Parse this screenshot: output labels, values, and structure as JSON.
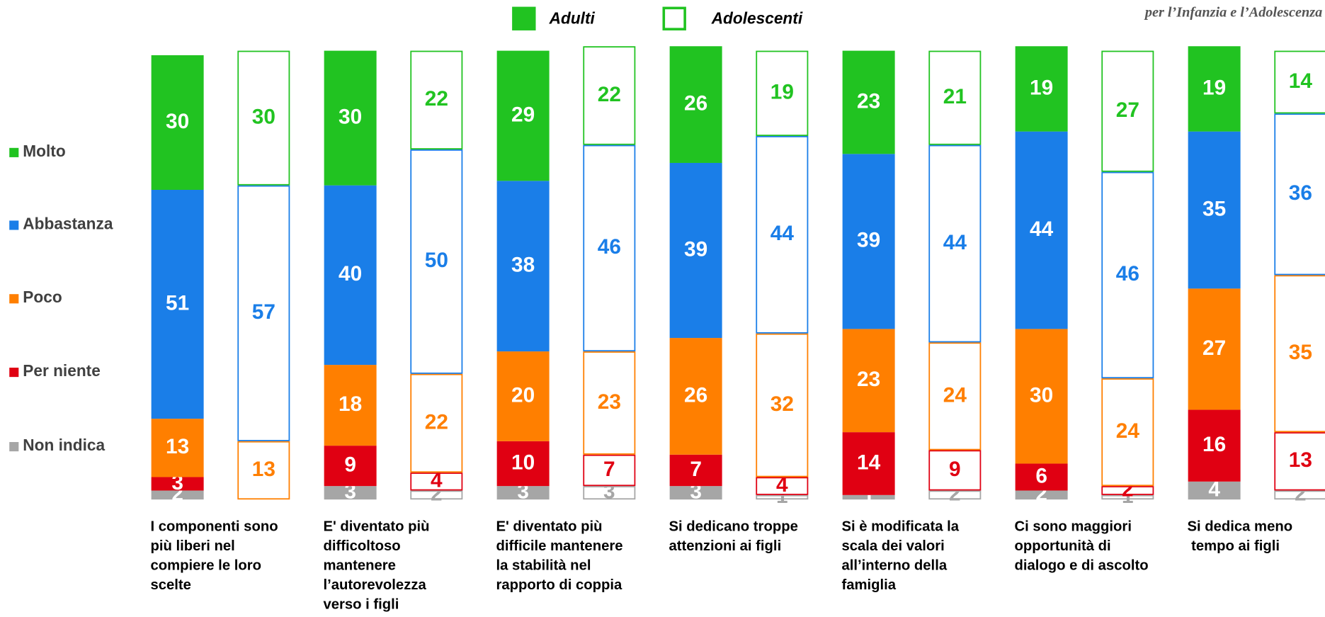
{
  "chart_data": {
    "type": "bar",
    "stacked": true,
    "logo_text": "per l’Infanzia e l’Adolescenza",
    "groups": [
      "Adulti",
      "Adolescenti"
    ],
    "categories": [
      "I componenti sono\npiù liberi nel\ncompiere le loro\nscelte",
      "E' diventato più\ndifficoltoso\nmantenere\nl’autorevolezza\nverso i figli",
      "E' diventato più\ndifficile mantenere\nla stabilità nel\nrapporto di coppia",
      "Si dedicano troppe\nattenzioni ai figli",
      "Si è modificata la\nscala dei valori\nall’interno della\nfamiglia",
      "Ci sono maggiori\nopportunità di\ndialogo e di ascolto",
      "Si dedica meno\n tempo ai figli"
    ],
    "ylim": [
      0,
      100
    ],
    "series": [
      {
        "name": "Non indica",
        "color": "#a6a6a6",
        "values": [
          [
            2,
            null
          ],
          [
            3,
            2
          ],
          [
            3,
            3
          ],
          [
            3,
            1
          ],
          [
            1,
            2
          ],
          [
            2,
            1
          ],
          [
            4,
            2
          ]
        ]
      },
      {
        "name": "Per niente",
        "color": "#e00012",
        "values": [
          [
            3,
            null
          ],
          [
            9,
            4
          ],
          [
            10,
            7
          ],
          [
            7,
            4
          ],
          [
            14,
            9
          ],
          [
            6,
            2
          ],
          [
            16,
            13
          ]
        ]
      },
      {
        "name": "Poco",
        "color": "#ff7f00",
        "values": [
          [
            13,
            13
          ],
          [
            18,
            22
          ],
          [
            20,
            23
          ],
          [
            26,
            32
          ],
          [
            23,
            24
          ],
          [
            30,
            24
          ],
          [
            27,
            35
          ]
        ]
      },
      {
        "name": "Abbastanza",
        "color": "#1a7ee8",
        "values": [
          [
            51,
            57
          ],
          [
            40,
            50
          ],
          [
            38,
            46
          ],
          [
            39,
            44
          ],
          [
            39,
            44
          ],
          [
            44,
            46
          ],
          [
            35,
            36
          ]
        ]
      },
      {
        "name": "Molto",
        "color": "#21c321",
        "values": [
          [
            30,
            30
          ],
          [
            30,
            22
          ],
          [
            29,
            22
          ],
          [
            26,
            19
          ],
          [
            23,
            21
          ],
          [
            19,
            27
          ],
          [
            19,
            14
          ]
        ]
      }
    ]
  }
}
